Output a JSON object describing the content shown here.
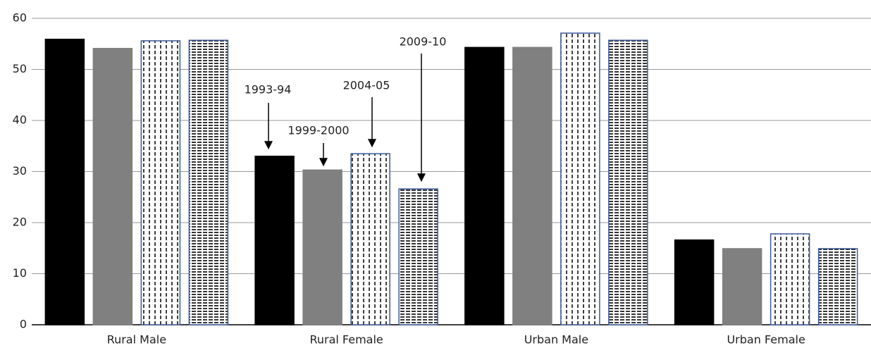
{
  "chart_data": {
    "type": "bar",
    "categories": [
      "Rural Male",
      "Rural Female",
      "Urban Male",
      "Urban Female"
    ],
    "series": [
      {
        "name": "1993-94",
        "color": "#000000",
        "pattern": "solid",
        "values": [
          55.9,
          33.0,
          54.3,
          16.6
        ]
      },
      {
        "name": "1999-2000",
        "color": "#808080",
        "pattern": "solid",
        "values": [
          54.1,
          30.3,
          54.3,
          14.9
        ]
      },
      {
        "name": "2004-05",
        "color": "#000000",
        "pattern": "vertical-dash",
        "values": [
          55.6,
          33.5,
          57.1,
          17.8
        ]
      },
      {
        "name": "2009-10",
        "color": "#000000",
        "pattern": "horizontal-dash",
        "values": [
          55.7,
          26.6,
          55.7,
          14.9
        ]
      }
    ],
    "ylim": [
      0,
      60
    ],
    "yticks": [
      0,
      10,
      20,
      30,
      40,
      50,
      60
    ],
    "grid": true
  }
}
